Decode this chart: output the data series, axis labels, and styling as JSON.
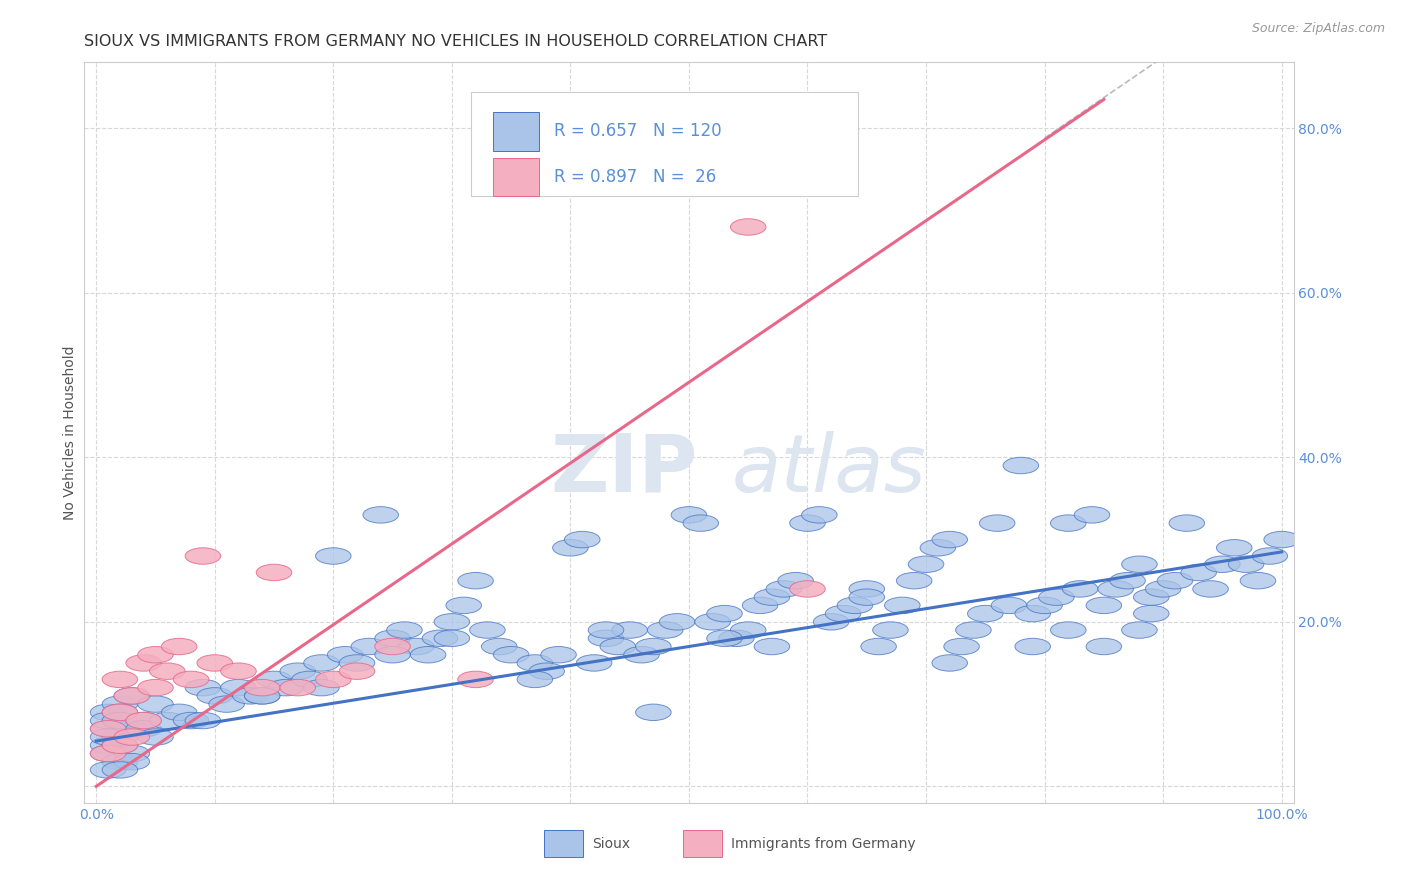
{
  "title": "SIOUX VS IMMIGRANTS FROM GERMANY NO VEHICLES IN HOUSEHOLD CORRELATION CHART",
  "source": "Source: ZipAtlas.com",
  "ylabel": "No Vehicles in Household",
  "xlim": [
    -0.01,
    1.01
  ],
  "ylim": [
    -0.02,
    0.88
  ],
  "xticks": [
    0.0,
    0.1,
    0.2,
    0.3,
    0.4,
    0.5,
    0.6,
    0.7,
    0.8,
    0.9,
    1.0
  ],
  "yticks": [
    0.0,
    0.2,
    0.4,
    0.6,
    0.8
  ],
  "sioux_points": [
    [
      0.01,
      0.07
    ],
    [
      0.01,
      0.05
    ],
    [
      0.01,
      0.09
    ],
    [
      0.01,
      0.04
    ],
    [
      0.02,
      0.1
    ],
    [
      0.01,
      0.08
    ],
    [
      0.02,
      0.06
    ],
    [
      0.02,
      0.03
    ],
    [
      0.02,
      0.05
    ],
    [
      0.01,
      0.02
    ],
    [
      0.03,
      0.07
    ],
    [
      0.02,
      0.09
    ],
    [
      0.01,
      0.06
    ],
    [
      0.02,
      0.08
    ],
    [
      0.03,
      0.11
    ],
    [
      0.04,
      0.08
    ],
    [
      0.02,
      0.05
    ],
    [
      0.03,
      0.04
    ],
    [
      0.04,
      0.07
    ],
    [
      0.05,
      0.1
    ],
    [
      0.06,
      0.08
    ],
    [
      0.07,
      0.09
    ],
    [
      0.08,
      0.08
    ],
    [
      0.09,
      0.12
    ],
    [
      0.1,
      0.11
    ],
    [
      0.11,
      0.1
    ],
    [
      0.12,
      0.12
    ],
    [
      0.13,
      0.11
    ],
    [
      0.14,
      0.11
    ],
    [
      0.15,
      0.13
    ],
    [
      0.16,
      0.12
    ],
    [
      0.17,
      0.14
    ],
    [
      0.18,
      0.13
    ],
    [
      0.19,
      0.15
    ],
    [
      0.2,
      0.28
    ],
    [
      0.21,
      0.16
    ],
    [
      0.22,
      0.15
    ],
    [
      0.23,
      0.17
    ],
    [
      0.24,
      0.33
    ],
    [
      0.25,
      0.18
    ],
    [
      0.26,
      0.19
    ],
    [
      0.27,
      0.17
    ],
    [
      0.28,
      0.16
    ],
    [
      0.29,
      0.18
    ],
    [
      0.3,
      0.2
    ],
    [
      0.31,
      0.22
    ],
    [
      0.32,
      0.25
    ],
    [
      0.33,
      0.19
    ],
    [
      0.34,
      0.17
    ],
    [
      0.35,
      0.16
    ],
    [
      0.37,
      0.15
    ],
    [
      0.38,
      0.14
    ],
    [
      0.39,
      0.16
    ],
    [
      0.4,
      0.29
    ],
    [
      0.41,
      0.3
    ],
    [
      0.42,
      0.15
    ],
    [
      0.43,
      0.18
    ],
    [
      0.44,
      0.17
    ],
    [
      0.45,
      0.19
    ],
    [
      0.46,
      0.16
    ],
    [
      0.47,
      0.09
    ],
    [
      0.48,
      0.19
    ],
    [
      0.49,
      0.2
    ],
    [
      0.5,
      0.33
    ],
    [
      0.51,
      0.32
    ],
    [
      0.52,
      0.2
    ],
    [
      0.53,
      0.21
    ],
    [
      0.54,
      0.18
    ],
    [
      0.55,
      0.19
    ],
    [
      0.56,
      0.22
    ],
    [
      0.57,
      0.23
    ],
    [
      0.58,
      0.24
    ],
    [
      0.59,
      0.25
    ],
    [
      0.6,
      0.32
    ],
    [
      0.61,
      0.33
    ],
    [
      0.62,
      0.2
    ],
    [
      0.63,
      0.21
    ],
    [
      0.64,
      0.22
    ],
    [
      0.65,
      0.24
    ],
    [
      0.66,
      0.17
    ],
    [
      0.67,
      0.19
    ],
    [
      0.68,
      0.22
    ],
    [
      0.69,
      0.25
    ],
    [
      0.7,
      0.27
    ],
    [
      0.71,
      0.29
    ],
    [
      0.72,
      0.3
    ],
    [
      0.73,
      0.17
    ],
    [
      0.74,
      0.19
    ],
    [
      0.75,
      0.21
    ],
    [
      0.76,
      0.32
    ],
    [
      0.77,
      0.22
    ],
    [
      0.78,
      0.39
    ],
    [
      0.79,
      0.21
    ],
    [
      0.8,
      0.22
    ],
    [
      0.81,
      0.23
    ],
    [
      0.82,
      0.32
    ],
    [
      0.83,
      0.24
    ],
    [
      0.84,
      0.33
    ],
    [
      0.85,
      0.22
    ],
    [
      0.86,
      0.24
    ],
    [
      0.87,
      0.25
    ],
    [
      0.88,
      0.27
    ],
    [
      0.89,
      0.23
    ],
    [
      0.9,
      0.24
    ],
    [
      0.91,
      0.25
    ],
    [
      0.92,
      0.32
    ],
    [
      0.93,
      0.26
    ],
    [
      0.94,
      0.24
    ],
    [
      0.95,
      0.27
    ],
    [
      0.96,
      0.29
    ],
    [
      0.82,
      0.19
    ],
    [
      0.88,
      0.19
    ],
    [
      0.89,
      0.21
    ],
    [
      0.85,
      0.17
    ],
    [
      0.79,
      0.17
    ],
    [
      0.72,
      0.15
    ],
    [
      0.65,
      0.23
    ],
    [
      0.57,
      0.17
    ],
    [
      0.53,
      0.18
    ],
    [
      0.47,
      0.17
    ],
    [
      0.43,
      0.19
    ],
    [
      0.37,
      0.13
    ],
    [
      0.3,
      0.18
    ],
    [
      0.25,
      0.16
    ],
    [
      0.19,
      0.12
    ],
    [
      0.14,
      0.11
    ],
    [
      0.09,
      0.08
    ],
    [
      0.05,
      0.06
    ],
    [
      0.03,
      0.03
    ],
    [
      0.02,
      0.02
    ],
    [
      0.97,
      0.27
    ],
    [
      0.98,
      0.25
    ],
    [
      0.99,
      0.28
    ],
    [
      1.0,
      0.3
    ]
  ],
  "germany_points": [
    [
      0.01,
      0.04
    ],
    [
      0.01,
      0.07
    ],
    [
      0.02,
      0.05
    ],
    [
      0.02,
      0.09
    ],
    [
      0.02,
      0.13
    ],
    [
      0.03,
      0.06
    ],
    [
      0.03,
      0.11
    ],
    [
      0.04,
      0.08
    ],
    [
      0.04,
      0.15
    ],
    [
      0.05,
      0.12
    ],
    [
      0.05,
      0.16
    ],
    [
      0.06,
      0.14
    ],
    [
      0.07,
      0.17
    ],
    [
      0.08,
      0.13
    ],
    [
      0.09,
      0.28
    ],
    [
      0.1,
      0.15
    ],
    [
      0.12,
      0.14
    ],
    [
      0.14,
      0.12
    ],
    [
      0.15,
      0.26
    ],
    [
      0.17,
      0.12
    ],
    [
      0.2,
      0.13
    ],
    [
      0.22,
      0.14
    ],
    [
      0.25,
      0.17
    ],
    [
      0.32,
      0.13
    ],
    [
      0.55,
      0.68
    ],
    [
      0.6,
      0.24
    ]
  ],
  "sioux_line": {
    "x0": 0.0,
    "y0": 0.055,
    "x1": 1.0,
    "y1": 0.285
  },
  "germany_line": {
    "x0": 0.0,
    "y0": 0.0,
    "x1": 0.85,
    "y1": 0.835
  },
  "sioux_color": "#4472c4",
  "sioux_fill": "#a9c4e8",
  "germany_color": "#e8688a",
  "germany_fill": "#f4afc0",
  "watermark_zip": "ZIP",
  "watermark_atlas": "atlas",
  "watermark_color": "#dce5f0",
  "background_color": "#ffffff",
  "grid_color": "#d8d8d8",
  "title_fontsize": 11.5,
  "axis_fontsize": 10,
  "tick_color": "#5b8fd6"
}
